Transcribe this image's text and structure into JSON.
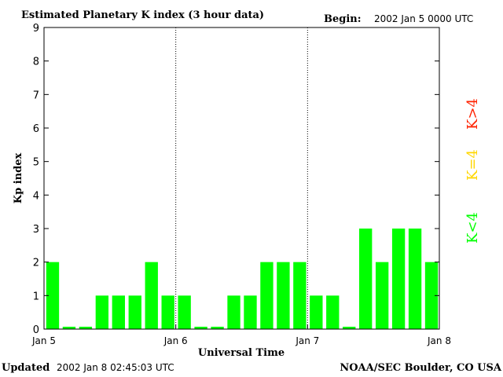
{
  "chart_data": {
    "type": "bar",
    "title": "Estimated Planetary K index (3 hour data)",
    "begin_label": "Begin:",
    "begin_value": "2002 Jan 5 0000 UTC",
    "ylabel": "Kp index",
    "xlabel": "Universal Time",
    "ylim": [
      0,
      9
    ],
    "yticks": [
      "0",
      "1",
      "2",
      "3",
      "4",
      "5",
      "6",
      "7",
      "8",
      "9"
    ],
    "xticks": [
      "Jan 5",
      "Jan 6",
      "Jan 7",
      "Jan 8"
    ],
    "values": [
      2,
      0,
      0,
      1,
      1,
      1,
      2,
      1,
      1,
      0,
      0,
      1,
      1,
      2,
      2,
      2,
      1,
      1,
      0,
      3,
      2,
      3,
      3,
      2
    ],
    "bar_color": "#00ff00",
    "legend": [
      {
        "label": "K<4",
        "color": "#00ff00"
      },
      {
        "label": "K=4",
        "color": "#ffd700"
      },
      {
        "label": "K>4",
        "color": "#ff2200"
      }
    ],
    "footer_left_label": "Updated",
    "footer_left_value": "2002 Jan  8 02:45:03 UTC",
    "footer_right": "NOAA/SEC Boulder, CO USA"
  }
}
